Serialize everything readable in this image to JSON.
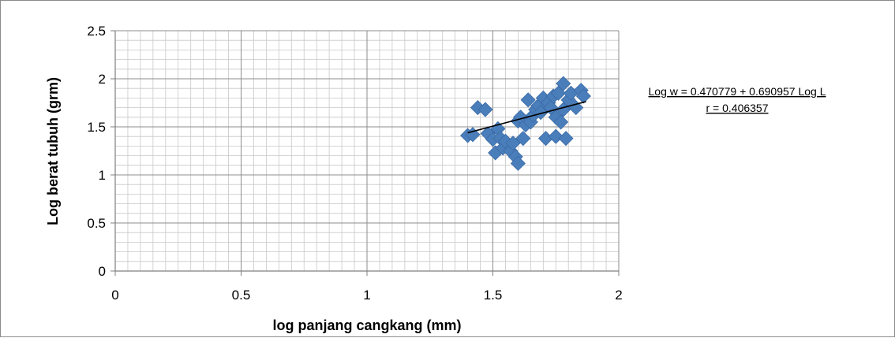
{
  "chart_data": {
    "type": "scatter",
    "title": "",
    "xlabel": "log panjang cangkang (mm)",
    "ylabel": "Log berat tubuh (grm)",
    "xlim": [
      0,
      2
    ],
    "ylim": [
      0,
      2.5
    ],
    "x_ticks": [
      "0",
      "0.5",
      "1",
      "1.5",
      "2"
    ],
    "y_ticks": [
      "0",
      "0.5",
      "1",
      "1.5",
      "2",
      "2.5"
    ],
    "x_tick_values": [
      0,
      0.5,
      1,
      1.5,
      2
    ],
    "y_tick_values": [
      0,
      0.5,
      1,
      1.5,
      2,
      2.5
    ],
    "grid": true,
    "minor_grid": true,
    "marker": "diamond",
    "marker_color": "#4a7ebb",
    "trendline_color": "#000000",
    "series": [
      {
        "points": [
          [
            1.4,
            1.41
          ],
          [
            1.42,
            1.42
          ],
          [
            1.44,
            1.7
          ],
          [
            1.47,
            1.68
          ],
          [
            1.48,
            1.43
          ],
          [
            1.5,
            1.37
          ],
          [
            1.51,
            1.23
          ],
          [
            1.52,
            1.48
          ],
          [
            1.53,
            1.38
          ],
          [
            1.54,
            1.28
          ],
          [
            1.55,
            1.35
          ],
          [
            1.57,
            1.25
          ],
          [
            1.58,
            1.33
          ],
          [
            1.59,
            1.19
          ],
          [
            1.6,
            1.12
          ],
          [
            1.6,
            1.56
          ],
          [
            1.61,
            1.6
          ],
          [
            1.62,
            1.38
          ],
          [
            1.63,
            1.52
          ],
          [
            1.64,
            1.78
          ],
          [
            1.65,
            1.55
          ],
          [
            1.66,
            1.62
          ],
          [
            1.67,
            1.68
          ],
          [
            1.68,
            1.72
          ],
          [
            1.69,
            1.65
          ],
          [
            1.7,
            1.8
          ],
          [
            1.71,
            1.38
          ],
          [
            1.72,
            1.75
          ],
          [
            1.73,
            1.7
          ],
          [
            1.74,
            1.82
          ],
          [
            1.75,
            1.4
          ],
          [
            1.75,
            1.6
          ],
          [
            1.76,
            1.85
          ],
          [
            1.77,
            1.55
          ],
          [
            1.78,
            1.95
          ],
          [
            1.78,
            1.68
          ],
          [
            1.79,
            1.38
          ],
          [
            1.8,
            1.78
          ],
          [
            1.81,
            1.85
          ],
          [
            1.83,
            1.7
          ],
          [
            1.85,
            1.88
          ],
          [
            1.86,
            1.82
          ]
        ]
      }
    ],
    "trendline": {
      "x_start": 1.4,
      "x_end": 1.87,
      "intercept": 0.470779,
      "slope": 0.690957
    },
    "annotations": [
      "Log w =  0.470779 +  0.690957 Log L",
      "r = 0.406357"
    ]
  }
}
